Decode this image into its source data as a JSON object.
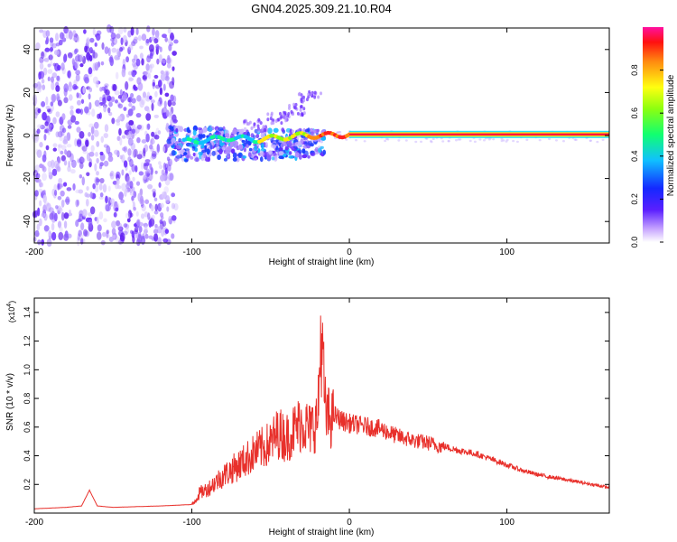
{
  "title": "GN04.2025.309.21.10.R04",
  "chart_data": [
    {
      "type": "heatmap",
      "title": "GN04.2025.309.21.10.R04",
      "xlabel": "Height of straight line (km)",
      "ylabel": "Frequency (Hz)",
      "xlim": [
        -200,
        165
      ],
      "ylim": [
        -50,
        50
      ],
      "xticks": [
        -200,
        -100,
        0,
        100
      ],
      "yticks": [
        -40,
        -20,
        0,
        20,
        40
      ],
      "colorbar": {
        "label": "Normalized spectral amplitude",
        "range": [
          0,
          1
        ],
        "ticks": [
          0.0,
          0.2,
          0.4,
          0.6,
          0.8
        ]
      },
      "ridge": [
        {
          "x": -105,
          "y": -3
        },
        {
          "x": -90,
          "y": -2
        },
        {
          "x": -75,
          "y": -1
        },
        {
          "x": -60,
          "y": -2
        },
        {
          "x": -45,
          "y": -1
        },
        {
          "x": -30,
          "y": 0
        },
        {
          "x": -15,
          "y": 0
        },
        {
          "x": 0,
          "y": 0.5
        },
        {
          "x": 100,
          "y": 0.5
        },
        {
          "x": 165,
          "y": 0.5
        }
      ],
      "upper_branch": [
        {
          "x": -60,
          "y": 5
        },
        {
          "x": -45,
          "y": 8
        },
        {
          "x": -35,
          "y": 12
        },
        {
          "x": -25,
          "y": 18
        }
      ]
    },
    {
      "type": "line",
      "xlabel": "Height of straight line (km)",
      "ylabel": "SNR (10 * v/v)",
      "yscale_label": "(x10",
      "yscale_exp": "4",
      "xlim": [
        -200,
        165
      ],
      "ylim": [
        0,
        1.5
      ],
      "xticks": [
        -200,
        -100,
        0,
        100
      ],
      "yticks": [
        0.2,
        0.4,
        0.6,
        0.8,
        1.0,
        1.2,
        1.4
      ],
      "series": [
        {
          "name": "SNR",
          "color": "#e8302b",
          "x": [
            -200,
            -180,
            -170,
            -165,
            -160,
            -150,
            -120,
            -100,
            -95,
            -90,
            -80,
            -70,
            -60,
            -50,
            -45,
            -40,
            -35,
            -30,
            -25,
            -20,
            -18,
            -15,
            -10,
            -5,
            0,
            10,
            20,
            30,
            40,
            50,
            60,
            70,
            80,
            90,
            100,
            110,
            120,
            140,
            165
          ],
          "values": [
            0.03,
            0.04,
            0.05,
            0.16,
            0.05,
            0.04,
            0.05,
            0.06,
            0.15,
            0.18,
            0.28,
            0.36,
            0.45,
            0.52,
            0.6,
            0.56,
            0.62,
            0.68,
            0.62,
            0.7,
            1.35,
            0.72,
            0.7,
            0.66,
            0.64,
            0.62,
            0.6,
            0.55,
            0.52,
            0.5,
            0.47,
            0.44,
            0.42,
            0.38,
            0.34,
            0.3,
            0.27,
            0.23,
            0.18
          ]
        }
      ]
    }
  ]
}
